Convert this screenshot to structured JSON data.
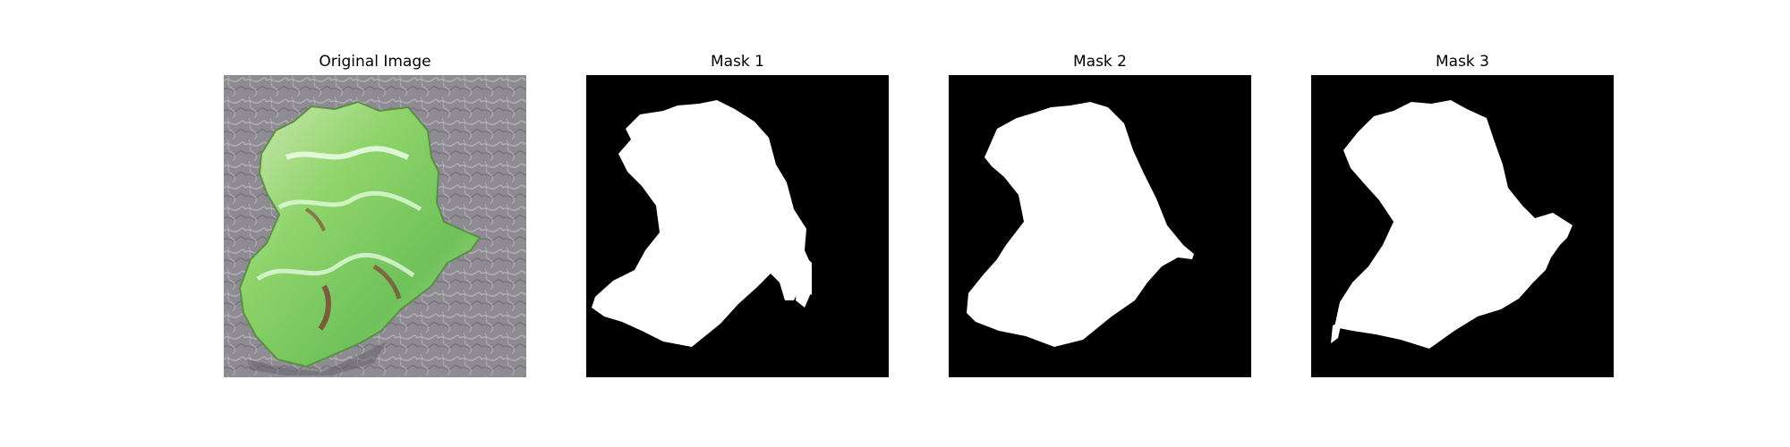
{
  "figure": {
    "panels": [
      {
        "title": "Original Image"
      },
      {
        "title": "Mask 1"
      },
      {
        "title": "Mask 2"
      },
      {
        "title": "Mask 3"
      }
    ]
  },
  "colors": {
    "background": "#ffffff",
    "mask_foreground": "#ffffff",
    "mask_background": "#000000",
    "ground_gray": "#8e8b92",
    "leaf_green": "#8fd46a"
  }
}
